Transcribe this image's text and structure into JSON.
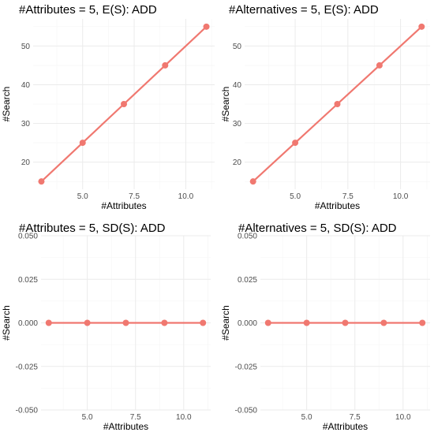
{
  "colors": {
    "series": "#f07870"
  },
  "chart_data": [
    {
      "type": "line",
      "title": "#Attributes = 5, E(S): ADD",
      "xlabel": "#Attributes",
      "ylabel": "#Search",
      "x": [
        3,
        5,
        7,
        9,
        11
      ],
      "values": [
        15,
        25,
        35,
        45,
        55
      ],
      "xlim": [
        2.6,
        11.4
      ],
      "ylim": [
        13,
        57
      ],
      "xticks": [
        5,
        7.5,
        10
      ],
      "xtick_labels": [
        "5.0",
        "7.5",
        "10.0"
      ],
      "yticks": [
        20,
        30,
        40,
        50
      ],
      "ytick_labels": [
        "20",
        "30",
        "40",
        "50"
      ],
      "grid": true
    },
    {
      "type": "line",
      "title": "#Alternatives = 5, E(S): ADD",
      "xlabel": "#Attributes",
      "ylabel": "#Search",
      "x": [
        3,
        5,
        7,
        9,
        11
      ],
      "values": [
        15,
        25,
        35,
        45,
        55
      ],
      "xlim": [
        2.6,
        11.4
      ],
      "ylim": [
        13,
        57
      ],
      "xticks": [
        5,
        7.5,
        10
      ],
      "xtick_labels": [
        "5.0",
        "7.5",
        "10.0"
      ],
      "yticks": [
        20,
        30,
        40,
        50
      ],
      "ytick_labels": [
        "20",
        "30",
        "40",
        "50"
      ],
      "grid": true
    },
    {
      "type": "line",
      "title": "#Attributes = 5, SD(S): ADD",
      "xlabel": "#Attributes",
      "ylabel": "#Search",
      "x": [
        3,
        5,
        7,
        9,
        11
      ],
      "values": [
        0,
        0,
        0,
        0,
        0
      ],
      "xlim": [
        2.6,
        11.4
      ],
      "ylim": [
        -0.05,
        0.05
      ],
      "xticks": [
        5,
        7.5,
        10
      ],
      "xtick_labels": [
        "5.0",
        "7.5",
        "10.0"
      ],
      "yticks": [
        -0.05,
        -0.025,
        0,
        0.025,
        0.05
      ],
      "ytick_labels": [
        "-0.050",
        "-0.025",
        "0.000",
        "0.025",
        "0.050"
      ],
      "grid": true
    },
    {
      "type": "line",
      "title": "#Alternatives = 5, SD(S): ADD",
      "xlabel": "#Attributes",
      "ylabel": "#Search",
      "x": [
        3,
        5,
        7,
        9,
        11
      ],
      "values": [
        0,
        0,
        0,
        0,
        0
      ],
      "xlim": [
        2.6,
        11.4
      ],
      "ylim": [
        -0.05,
        0.05
      ],
      "xticks": [
        5,
        7.5,
        10
      ],
      "xtick_labels": [
        "5.0",
        "7.5",
        "10.0"
      ],
      "yticks": [
        -0.05,
        -0.025,
        0,
        0.025,
        0.05
      ],
      "ytick_labels": [
        "-0.050",
        "-0.025",
        "0.000",
        "0.025",
        "0.050"
      ],
      "grid": true
    }
  ]
}
